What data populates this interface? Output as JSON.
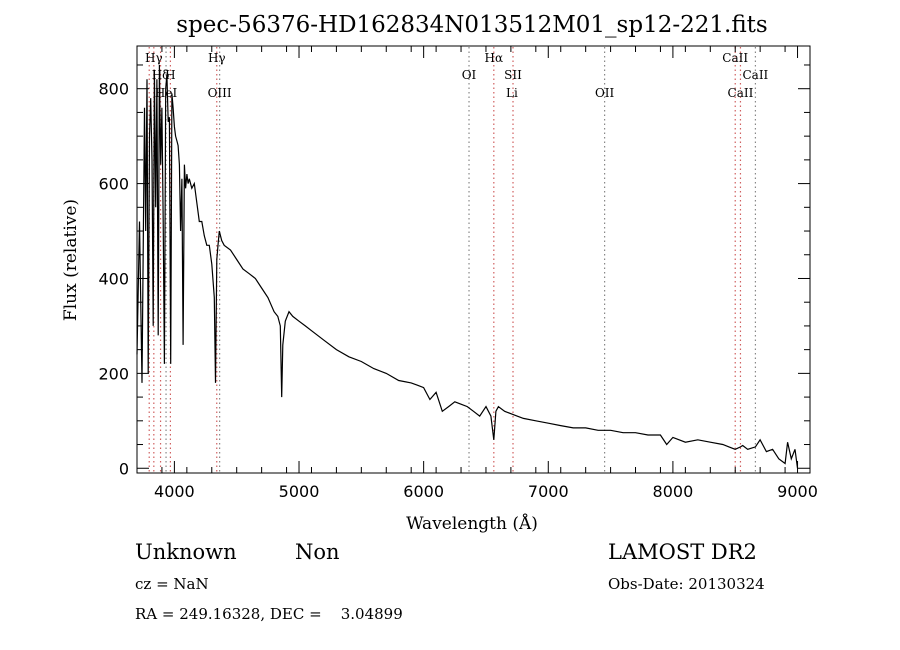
{
  "chart_data": {
    "type": "line",
    "title": "spec-56376-HD162834N013512M01_sp12-221.fits",
    "xlabel": "Wavelength (Å)",
    "ylabel": "Flux (relative)",
    "xlim": [
      3700,
      9100
    ],
    "ylim": [
      -10,
      890
    ],
    "x_ticks": [
      "4000",
      "5000",
      "6000",
      "7000",
      "8000",
      "9000"
    ],
    "y_ticks": [
      "0",
      "200",
      "400",
      "600",
      "800"
    ],
    "series": [
      {
        "x": [
          3700,
          3720,
          3740,
          3760,
          3770,
          3780,
          3790,
          3800,
          3810,
          3820,
          3830,
          3840,
          3850,
          3860,
          3870,
          3880,
          3890,
          3900,
          3910,
          3920,
          3930,
          3940,
          3950,
          3960,
          3970,
          3980,
          3990,
          4000,
          4010,
          4020,
          4030,
          4040,
          4050,
          4060,
          4070,
          4080,
          4090,
          4100,
          4110,
          4120,
          4140,
          4160,
          4180,
          4200,
          4220,
          4240,
          4260,
          4280,
          4300,
          4320,
          4330,
          4340,
          4350,
          4360,
          4380,
          4400,
          4450,
          4500,
          4550,
          4600,
          4650,
          4700,
          4750,
          4800,
          4830,
          4850,
          4861,
          4870,
          4890,
          4920,
          4950,
          5000,
          5050,
          5100,
          5200,
          5300,
          5400,
          5500,
          5600,
          5700,
          5800,
          5900,
          5950,
          6000,
          6050,
          6100,
          6150,
          6200,
          6250,
          6300,
          6350,
          6400,
          6450,
          6500,
          6540,
          6563,
          6580,
          6600,
          6650,
          6700,
          6750,
          6800,
          6900,
          7000,
          7100,
          7200,
          7300,
          7400,
          7500,
          7600,
          7700,
          7800,
          7900,
          7950,
          8000,
          8050,
          8100,
          8200,
          8300,
          8400,
          8450,
          8500,
          8542,
          8560,
          8600,
          8662,
          8700,
          8750,
          8800,
          8850,
          8900,
          8920,
          8950,
          8980,
          9000
        ],
        "y": [
          240,
          520,
          180,
          760,
          500,
          820,
          200,
          700,
          780,
          650,
          300,
          840,
          550,
          820,
          280,
          850,
          640,
          760,
          520,
          220,
          800,
          830,
          730,
          740,
          220,
          790,
          760,
          720,
          700,
          690,
          680,
          640,
          500,
          610,
          260,
          640,
          590,
          620,
          600,
          610,
          590,
          600,
          560,
          520,
          520,
          490,
          470,
          470,
          430,
          360,
          180,
          440,
          470,
          500,
          480,
          470,
          460,
          440,
          420,
          410,
          400,
          380,
          360,
          330,
          320,
          300,
          150,
          260,
          310,
          330,
          320,
          310,
          300,
          290,
          270,
          250,
          235,
          225,
          210,
          200,
          185,
          180,
          175,
          170,
          145,
          160,
          120,
          130,
          140,
          135,
          130,
          120,
          110,
          130,
          110,
          60,
          120,
          130,
          120,
          115,
          110,
          105,
          100,
          95,
          90,
          85,
          85,
          80,
          80,
          75,
          75,
          70,
          70,
          50,
          65,
          60,
          55,
          60,
          55,
          50,
          45,
          40,
          45,
          48,
          40,
          45,
          60,
          35,
          40,
          20,
          10,
          55,
          20,
          40,
          0
        ]
      }
    ],
    "annotations": [
      {
        "label": "Hγ",
        "x": 3835,
        "row": 1
      },
      {
        "label": "Hδ",
        "x": 3889,
        "row": 2
      },
      {
        "label": "H",
        "x": 3968,
        "row": 2
      },
      {
        "label": "HeI",
        "x": 3933,
        "row": 3
      },
      {
        "label": "Hγ",
        "x": 4340,
        "row": 1
      },
      {
        "label": "OIII",
        "x": 4363,
        "row": 3
      },
      {
        "label": "OI",
        "x": 6364,
        "row": 2
      },
      {
        "label": "Hα",
        "x": 6563,
        "row": 1
      },
      {
        "label": "SII",
        "x": 6717,
        "row": 2
      },
      {
        "label": "Li",
        "x": 6708,
        "row": 3
      },
      {
        "label": "OII",
        "x": 7452,
        "row": 3
      },
      {
        "label": "CaII",
        "x": 8500,
        "row": 1
      },
      {
        "label": "CaII",
        "x": 8662,
        "row": 2
      },
      {
        "label": "CaII",
        "x": 8542,
        "row": 3
      }
    ],
    "line_markers": [
      {
        "x": 3798,
        "color": "#d06060"
      },
      {
        "x": 3835,
        "color": "#d06060"
      },
      {
        "x": 3889,
        "color": "#d06060"
      },
      {
        "x": 3933,
        "color": "#888888"
      },
      {
        "x": 3968,
        "color": "#d06060"
      },
      {
        "x": 4340,
        "color": "#d06060"
      },
      {
        "x": 4363,
        "color": "#888888"
      },
      {
        "x": 6364,
        "color": "#888888"
      },
      {
        "x": 6563,
        "color": "#d06060"
      },
      {
        "x": 6717,
        "color": "#d06060"
      },
      {
        "x": 7452,
        "color": "#888888"
      },
      {
        "x": 8500,
        "color": "#d06060"
      },
      {
        "x": 8542,
        "color": "#d06060"
      },
      {
        "x": 8662,
        "color": "#888888"
      }
    ]
  },
  "info": {
    "object_class": "Unknown",
    "subclass": "Non",
    "survey": "LAMOST DR2",
    "cz": "cz = NaN",
    "obs_date": "Obs-Date: 20130324",
    "coords": "RA = 249.16328, DEC =    3.04899"
  }
}
